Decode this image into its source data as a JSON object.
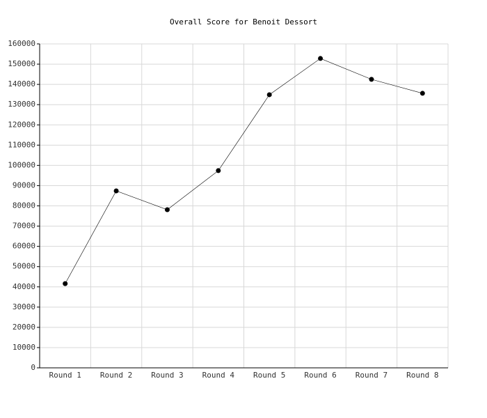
{
  "chart_data": {
    "type": "line",
    "title": "Overall Score for Benoit Dessort",
    "categories": [
      "Round 1",
      "Round 2",
      "Round 3",
      "Round 4",
      "Round 5",
      "Round 6",
      "Round 7",
      "Round 8"
    ],
    "values": [
      41600,
      87400,
      78100,
      97400,
      134900,
      152800,
      142500,
      135600
    ],
    "color": "#000000",
    "ylim": [
      0,
      160000
    ],
    "yticks": [
      0,
      10000,
      20000,
      30000,
      40000,
      50000,
      60000,
      70000,
      80000,
      90000,
      100000,
      110000,
      120000,
      130000,
      140000,
      150000,
      160000
    ],
    "grid": true
  }
}
